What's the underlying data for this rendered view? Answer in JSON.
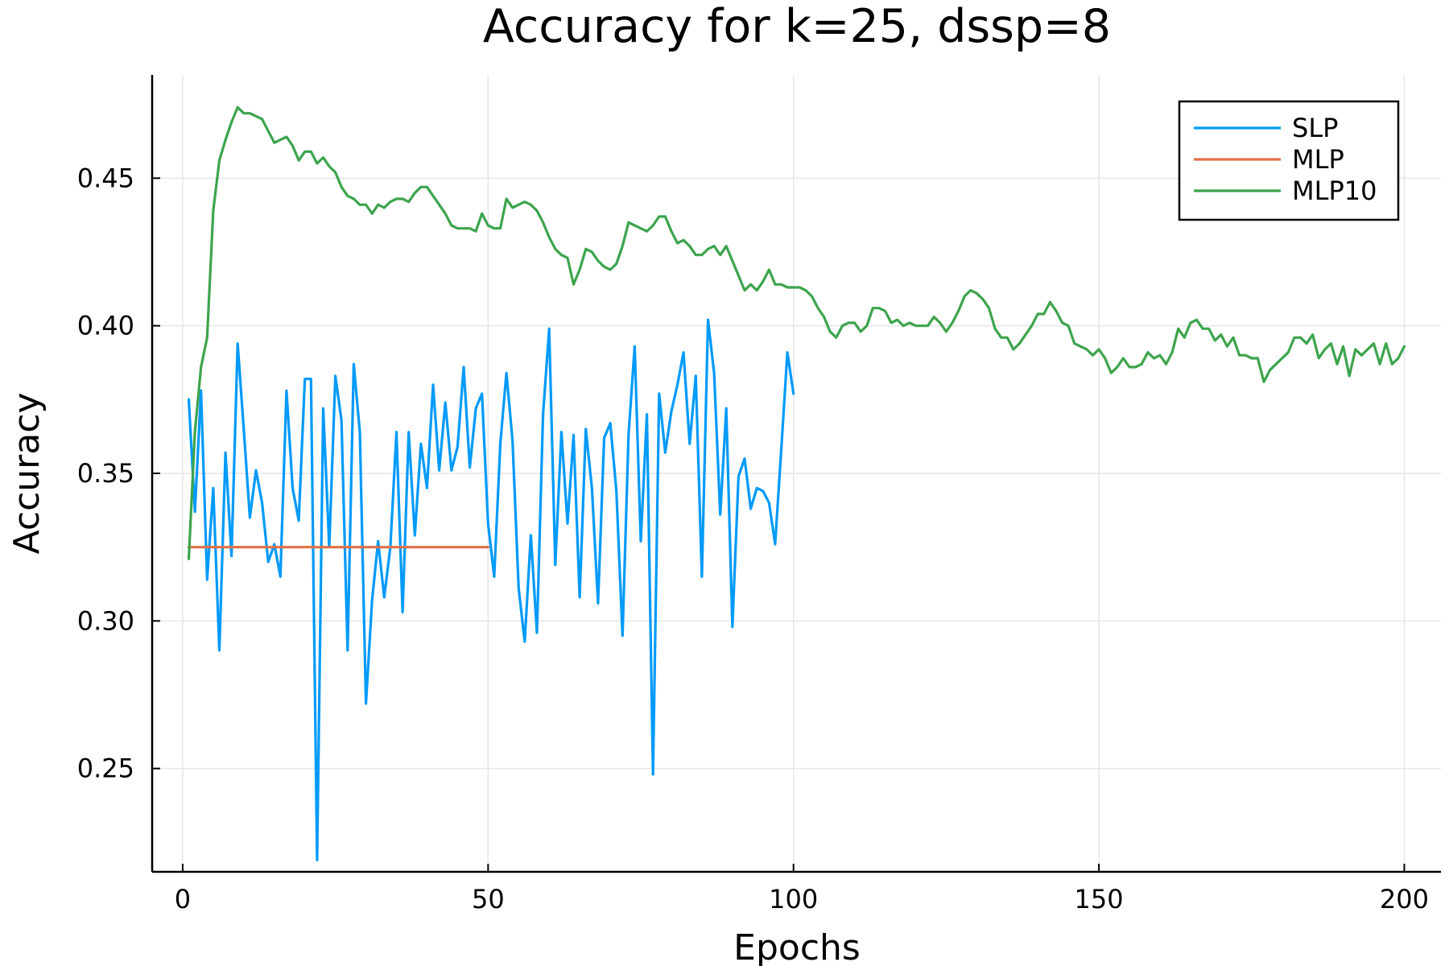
{
  "chart_data": {
    "type": "line",
    "title": "Accuracy for k=25, dssp=8",
    "xlabel": "Epochs",
    "ylabel": "Accuracy",
    "xlim": [
      -5,
      206
    ],
    "ylim": [
      0.215,
      0.485
    ],
    "xticks": [
      0,
      50,
      100,
      150,
      200
    ],
    "xtick_labels": [
      "0",
      "50",
      "100",
      "150",
      "200"
    ],
    "yticks": [
      0.25,
      0.3,
      0.35,
      0.4,
      0.45
    ],
    "ytick_labels": [
      "0.25",
      "0.30",
      "0.35",
      "0.40",
      "0.45"
    ],
    "grid": true,
    "legend_position": "top-right",
    "series": [
      {
        "name": "SLP",
        "color": "#009af9",
        "x": [
          1,
          2,
          3,
          4,
          5,
          6,
          7,
          8,
          9,
          10,
          11,
          12,
          13,
          14,
          15,
          16,
          17,
          18,
          19,
          20,
          21,
          22,
          23,
          24,
          25,
          26,
          27,
          28,
          29,
          30,
          31,
          32,
          33,
          34,
          35,
          36,
          37,
          38,
          39,
          40,
          41,
          42,
          43,
          44,
          45,
          46,
          47,
          48,
          49,
          50,
          51,
          52,
          53,
          54,
          55,
          56,
          57,
          58,
          59,
          60,
          61,
          62,
          63,
          64,
          65,
          66,
          67,
          68,
          69,
          70,
          71,
          72,
          73,
          74,
          75,
          76,
          77,
          78,
          79,
          80,
          81,
          82,
          83,
          84,
          85,
          86,
          87,
          88,
          89,
          90,
          91,
          92,
          93,
          94,
          95,
          96,
          97,
          98,
          99,
          100
        ],
        "values": [
          0.375,
          0.337,
          0.378,
          0.314,
          0.345,
          0.29,
          0.357,
          0.322,
          0.394,
          0.365,
          0.335,
          0.351,
          0.34,
          0.32,
          0.326,
          0.315,
          0.378,
          0.345,
          0.334,
          0.382,
          0.382,
          0.219,
          0.372,
          0.325,
          0.383,
          0.368,
          0.29,
          0.387,
          0.364,
          0.272,
          0.307,
          0.327,
          0.308,
          0.325,
          0.364,
          0.303,
          0.364,
          0.329,
          0.36,
          0.345,
          0.38,
          0.351,
          0.374,
          0.351,
          0.359,
          0.386,
          0.352,
          0.372,
          0.377,
          0.333,
          0.315,
          0.36,
          0.384,
          0.361,
          0.311,
          0.293,
          0.329,
          0.296,
          0.37,
          0.399,
          0.319,
          0.364,
          0.333,
          0.363,
          0.308,
          0.365,
          0.345,
          0.306,
          0.362,
          0.367,
          0.344,
          0.295,
          0.363,
          0.393,
          0.327,
          0.37,
          0.248,
          0.377,
          0.357,
          0.371,
          0.38,
          0.391,
          0.36,
          0.383,
          0.315,
          0.402,
          0.384,
          0.336,
          0.372,
          0.298,
          0.349,
          0.355,
          0.338,
          0.345,
          0.344,
          0.34,
          0.326,
          0.358,
          0.391,
          0.377
        ]
      },
      {
        "name": "MLP",
        "color": "#e26f46",
        "x": [
          1,
          50
        ],
        "values": [
          0.325,
          0.325
        ]
      },
      {
        "name": "MLP10",
        "color": "#3da44d",
        "x": [
          1,
          2,
          3,
          4,
          5,
          6,
          7,
          8,
          9,
          10,
          11,
          12,
          13,
          14,
          15,
          16,
          17,
          18,
          19,
          20,
          21,
          22,
          23,
          24,
          25,
          26,
          27,
          28,
          29,
          30,
          31,
          32,
          33,
          34,
          35,
          36,
          37,
          38,
          39,
          40,
          41,
          42,
          43,
          44,
          45,
          46,
          47,
          48,
          49,
          50,
          51,
          52,
          53,
          54,
          55,
          56,
          57,
          58,
          59,
          60,
          61,
          62,
          63,
          64,
          65,
          66,
          67,
          68,
          69,
          70,
          71,
          72,
          73,
          74,
          75,
          76,
          77,
          78,
          79,
          80,
          81,
          82,
          83,
          84,
          85,
          86,
          87,
          88,
          89,
          90,
          91,
          92,
          93,
          94,
          95,
          96,
          97,
          98,
          99,
          100,
          101,
          102,
          103,
          104,
          105,
          106,
          107,
          108,
          109,
          110,
          111,
          112,
          113,
          114,
          115,
          116,
          117,
          118,
          119,
          120,
          121,
          122,
          123,
          124,
          125,
          126,
          127,
          128,
          129,
          130,
          131,
          132,
          133,
          134,
          135,
          136,
          137,
          138,
          139,
          140,
          141,
          142,
          143,
          144,
          145,
          146,
          147,
          148,
          149,
          150,
          151,
          152,
          153,
          154,
          155,
          156,
          157,
          158,
          159,
          160,
          161,
          162,
          163,
          164,
          165,
          166,
          167,
          168,
          169,
          170,
          171,
          172,
          173,
          174,
          175,
          176,
          177,
          178,
          179,
          180,
          181,
          182,
          183,
          184,
          185,
          186,
          187,
          188,
          189,
          190,
          191,
          192,
          193,
          194,
          195,
          196,
          197,
          198,
          199,
          200
        ],
        "values": [
          0.321,
          0.364,
          0.386,
          0.396,
          0.439,
          0.456,
          0.463,
          0.469,
          0.474,
          0.472,
          0.472,
          0.471,
          0.47,
          0.466,
          0.462,
          0.463,
          0.464,
          0.461,
          0.456,
          0.459,
          0.459,
          0.455,
          0.457,
          0.454,
          0.452,
          0.447,
          0.444,
          0.443,
          0.441,
          0.441,
          0.438,
          0.441,
          0.44,
          0.442,
          0.443,
          0.443,
          0.442,
          0.445,
          0.447,
          0.447,
          0.444,
          0.441,
          0.438,
          0.434,
          0.433,
          0.433,
          0.433,
          0.432,
          0.438,
          0.434,
          0.433,
          0.433,
          0.443,
          0.44,
          0.441,
          0.442,
          0.441,
          0.439,
          0.435,
          0.43,
          0.426,
          0.424,
          0.423,
          0.414,
          0.419,
          0.426,
          0.425,
          0.422,
          0.42,
          0.419,
          0.421,
          0.427,
          0.435,
          0.434,
          0.433,
          0.432,
          0.434,
          0.437,
          0.437,
          0.432,
          0.428,
          0.429,
          0.427,
          0.424,
          0.424,
          0.426,
          0.427,
          0.424,
          0.427,
          0.422,
          0.417,
          0.412,
          0.414,
          0.412,
          0.415,
          0.419,
          0.414,
          0.414,
          0.413,
          0.413,
          0.413,
          0.412,
          0.41,
          0.406,
          0.403,
          0.398,
          0.396,
          0.4,
          0.401,
          0.401,
          0.398,
          0.4,
          0.406,
          0.406,
          0.405,
          0.401,
          0.402,
          0.4,
          0.401,
          0.4,
          0.4,
          0.4,
          0.403,
          0.401,
          0.398,
          0.401,
          0.405,
          0.41,
          0.412,
          0.411,
          0.409,
          0.406,
          0.399,
          0.396,
          0.396,
          0.392,
          0.394,
          0.397,
          0.4,
          0.404,
          0.404,
          0.408,
          0.405,
          0.401,
          0.4,
          0.394,
          0.393,
          0.392,
          0.39,
          0.392,
          0.389,
          0.384,
          0.386,
          0.389,
          0.386,
          0.386,
          0.387,
          0.391,
          0.389,
          0.39,
          0.387,
          0.391,
          0.399,
          0.396,
          0.401,
          0.402,
          0.399,
          0.399,
          0.395,
          0.397,
          0.393,
          0.396,
          0.39,
          0.39,
          0.389,
          0.389,
          0.381,
          0.385,
          0.387,
          0.389,
          0.391,
          0.396,
          0.396,
          0.394,
          0.397,
          0.389,
          0.392,
          0.394,
          0.387,
          0.393,
          0.383,
          0.392,
          0.39,
          0.392,
          0.394,
          0.387,
          0.394,
          0.387,
          0.389,
          0.393
        ]
      }
    ]
  }
}
